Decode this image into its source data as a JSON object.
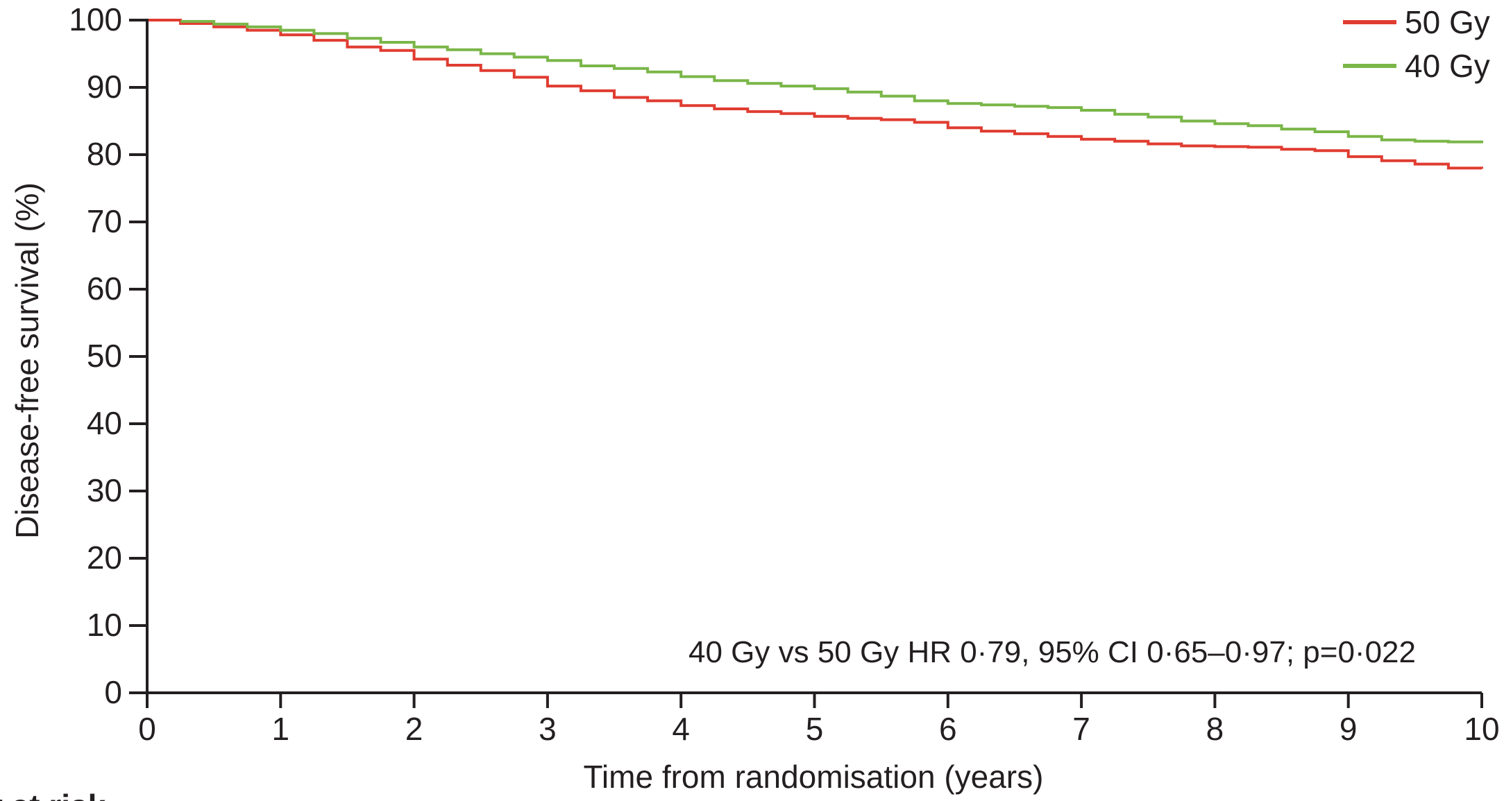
{
  "chart_data": {
    "type": "line",
    "xlabel": "Time from randomisation (years)",
    "ylabel": "Disease-free survival (%)",
    "xlim": [
      0,
      10
    ],
    "ylim": [
      0,
      100
    ],
    "x_ticks": [
      "0",
      "1",
      "2",
      "3",
      "4",
      "5",
      "6",
      "7",
      "8",
      "9",
      "10"
    ],
    "y_ticks": [
      "0",
      "10",
      "20",
      "30",
      "40",
      "50",
      "60",
      "70",
      "80",
      "90",
      "100"
    ],
    "grid": false,
    "legend_position": "top-right",
    "annotation": "40 Gy vs 50 Gy HR 0·79, 95% CI 0·65–0·97; p=0·022",
    "risk_table_header": "r at risk",
    "series": [
      {
        "name": "50 Gy",
        "color": "#e03c31",
        "x": [
          0,
          0.25,
          0.5,
          0.75,
          1.0,
          1.25,
          1.5,
          1.75,
          2.0,
          2.25,
          2.5,
          2.75,
          3.0,
          3.25,
          3.5,
          3.75,
          4.0,
          4.25,
          4.5,
          4.75,
          5.0,
          5.25,
          5.5,
          5.75,
          6.0,
          6.25,
          6.5,
          6.75,
          7.0,
          7.25,
          7.5,
          7.75,
          8.0,
          8.25,
          8.5,
          8.75,
          9.0,
          9.25,
          9.5,
          9.75,
          10.0
        ],
        "y": [
          100,
          99.5,
          99.0,
          98.5,
          97.8,
          97.0,
          96.0,
          95.5,
          94.2,
          93.3,
          92.5,
          91.5,
          90.2,
          89.5,
          88.5,
          88.0,
          87.3,
          86.8,
          86.4,
          86.1,
          85.7,
          85.4,
          85.2,
          84.8,
          84.0,
          83.5,
          83.1,
          82.7,
          82.3,
          82.0,
          81.6,
          81.3,
          81.2,
          81.1,
          80.8,
          80.6,
          79.7,
          79.1,
          78.6,
          78.0,
          77.9
        ]
      },
      {
        "name": "40 Gy",
        "color": "#7ab648",
        "x": [
          0.25,
          0.5,
          0.75,
          1.0,
          1.25,
          1.5,
          1.75,
          2.0,
          2.25,
          2.5,
          2.75,
          3.0,
          3.25,
          3.5,
          3.75,
          4.0,
          4.25,
          4.5,
          4.75,
          5.0,
          5.25,
          5.5,
          5.75,
          6.0,
          6.25,
          6.5,
          6.75,
          7.0,
          7.25,
          7.5,
          7.75,
          8.0,
          8.25,
          8.5,
          8.75,
          9.0,
          9.25,
          9.5,
          9.75,
          10.0
        ],
        "y": [
          99.8,
          99.4,
          99.0,
          98.5,
          98.0,
          97.3,
          96.7,
          96.0,
          95.6,
          95.0,
          94.5,
          94.0,
          93.2,
          92.8,
          92.3,
          91.6,
          91.0,
          90.6,
          90.2,
          89.8,
          89.3,
          88.7,
          88.0,
          87.6,
          87.4,
          87.2,
          87.0,
          86.6,
          86.0,
          85.6,
          85.0,
          84.6,
          84.3,
          83.8,
          83.4,
          82.7,
          82.2,
          82.0,
          81.9,
          81.7
        ]
      }
    ]
  }
}
